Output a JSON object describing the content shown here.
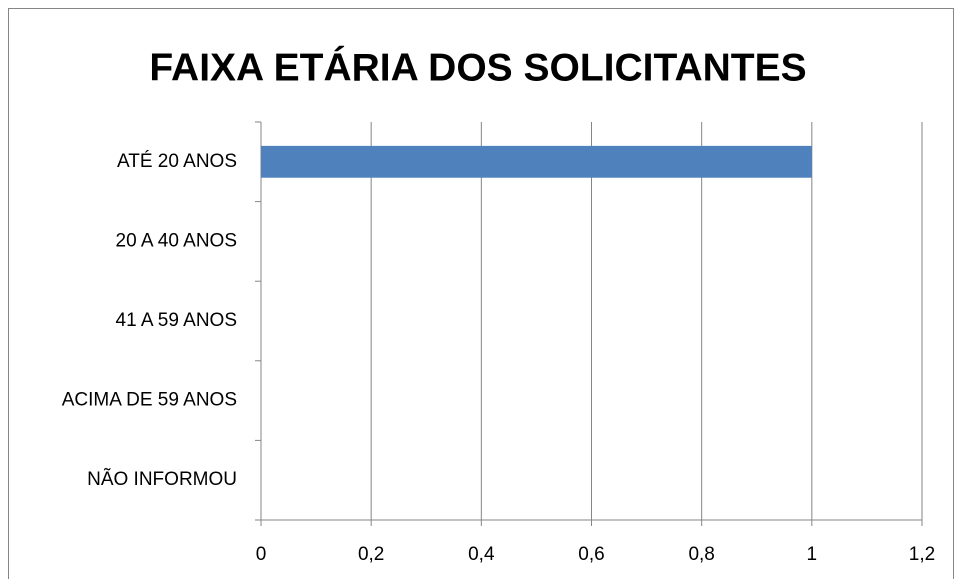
{
  "chart_data": {
    "type": "barh",
    "title": "FAIXA ETÁRIA DOS SOLICITANTES",
    "categories": [
      "ATÉ 20 ANOS",
      "20 A 40 ANOS",
      "41 A 59 ANOS",
      "ACIMA DE 59 ANOS",
      "NÃO INFORMOU"
    ],
    "values": [
      1,
      0,
      0,
      0,
      0
    ],
    "color": "#4f81bd",
    "xlim": [
      0,
      1.2
    ],
    "xticks": [
      0,
      {
        "value": 0.2,
        "label": "0,2"
      },
      {
        "value": 0.4,
        "label": "0,4"
      },
      {
        "value": 0.6,
        "label": "0,6"
      },
      {
        "value": 0.8,
        "label": "0,8"
      },
      1,
      {
        "value": 1.2,
        "label": "1,2"
      }
    ],
    "grid": true
  }
}
